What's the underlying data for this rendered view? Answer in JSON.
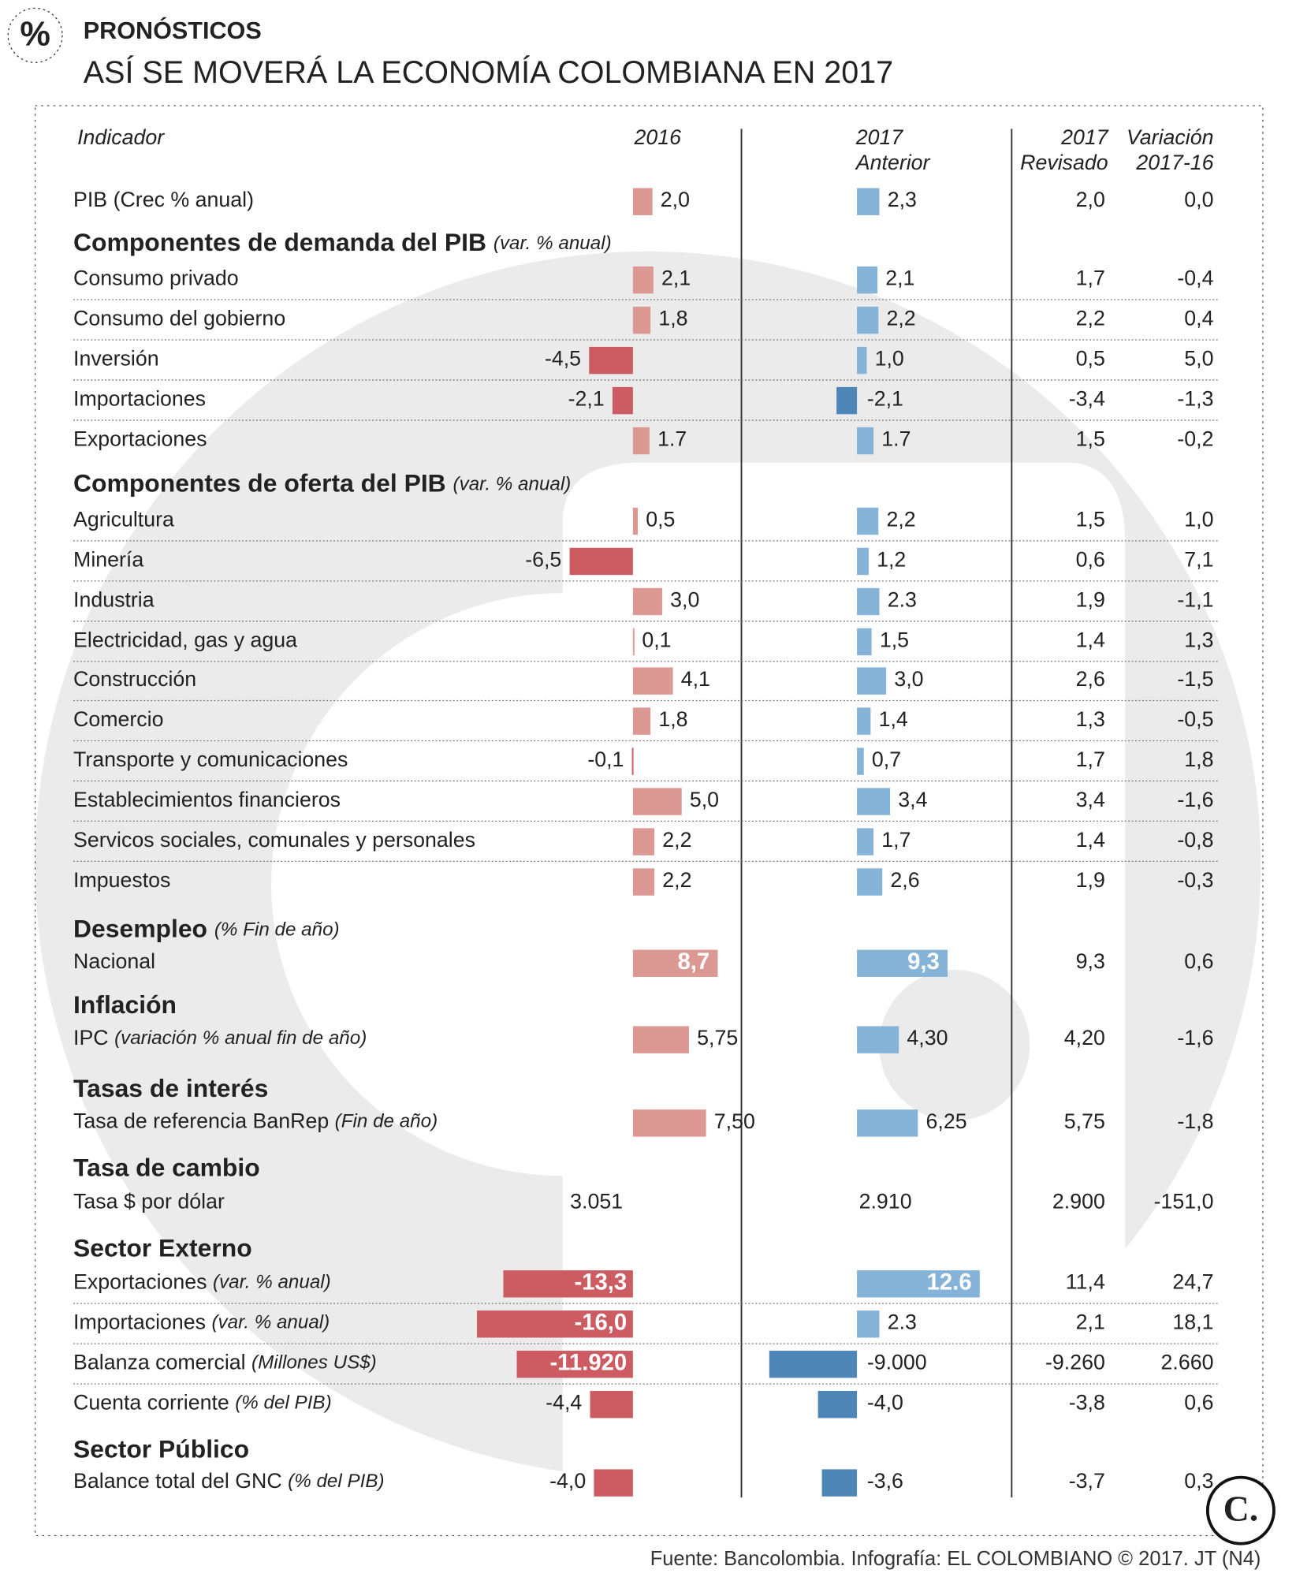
{
  "icon": "%",
  "header": {
    "kicker": "PRONÓSTICOS",
    "title": "ASÍ SE MOVERÁ LA ECONOMÍA COLOMBIANA EN 2017"
  },
  "columns": {
    "indicador": "Indicador",
    "c2016": "2016",
    "c2017a": [
      "2017",
      "Anterior"
    ],
    "c2017r": [
      "2017",
      "Revisado"
    ],
    "var": [
      "Variación",
      "2017-16"
    ]
  },
  "sections": [
    {
      "rows": [
        {
          "label": "PIB (Crec % anual)",
          "v16": 2.0,
          "l16": "2,0",
          "v17": 2.3,
          "l17": "2,3",
          "rev": "2,0",
          "var": "0,0"
        }
      ]
    },
    {
      "title": "Componentes de demanda del PIB",
      "note": "(var. % anual)",
      "rows": [
        {
          "label": "Consumo privado",
          "v16": 2.1,
          "l16": "2,1",
          "v17": 2.1,
          "l17": "2,1",
          "rev": "1,7",
          "var": "-0,4"
        },
        {
          "label": "Consumo del gobierno",
          "v16": 1.8,
          "l16": "1,8",
          "v17": 2.2,
          "l17": "2,2",
          "rev": "2,2",
          "var": "0,4"
        },
        {
          "label": "Inversión",
          "v16": -4.5,
          "l16": "-4,5",
          "v17": 1.0,
          "l17": "1,0",
          "rev": "0,5",
          "var": "5,0"
        },
        {
          "label": "Importaciones",
          "v16": -2.1,
          "l16": "-2,1",
          "v17": -2.1,
          "l17": "-2,1",
          "rev": "-3,4",
          "var": "-1,3"
        },
        {
          "label": "Exportaciones",
          "v16": 1.7,
          "v17": 1.7,
          "rev": "1,5",
          "var": "-0,2"
        }
      ]
    },
    {
      "title": "Componentes de oferta del PIB",
      "note": "(var. % anual)",
      "rows": [
        {
          "label": "Agricultura",
          "v16": 0.5,
          "l16": "0,5",
          "v17": 2.2,
          "l17": "2,2",
          "rev": "1,5",
          "var": "1,0"
        },
        {
          "label": "Minería",
          "v16": -6.5,
          "l16": "-6,5",
          "v17": 1.2,
          "l17": "1,2",
          "rev": "0,6",
          "var": "7,1"
        },
        {
          "label": "Industria",
          "v16": 3.0,
          "l16": "3,0",
          "v17": 2.3,
          "rev": "1,9",
          "var": "-1,1"
        },
        {
          "label": "Electricidad, gas y agua",
          "v16": 0.1,
          "l16": "0,1",
          "v17": 1.5,
          "l17": "1,5",
          "rev": "1,4",
          "var": "1,3"
        },
        {
          "label": "Construcción",
          "v16": 4.1,
          "l16": "4,1",
          "v17": 3.0,
          "l17": "3,0",
          "rev": "2,6",
          "var": "-1,5"
        },
        {
          "label": "Comercio",
          "v16": 1.8,
          "l16": "1,8",
          "v17": 1.4,
          "l17": "1,4",
          "rev": "1,3",
          "var": "-0,5"
        },
        {
          "label": "Transporte y comunicaciones",
          "v16": -0.1,
          "l16": "-0,1",
          "v17": 0.7,
          "l17": "0,7",
          "rev": "1,7",
          "var": "1,8"
        },
        {
          "label": "Establecimientos financieros",
          "v16": 5.0,
          "l16": "5,0",
          "v17": 3.4,
          "l17": "3,4",
          "rev": "3,4",
          "var": "-1,6"
        },
        {
          "label": "Servicos sociales, comunales y personales",
          "v16": 2.2,
          "l16": "2,2",
          "v17": 1.7,
          "l17": "1,7",
          "rev": "1,4",
          "var": "-0,8"
        },
        {
          "label": "Impuestos",
          "v16": 2.2,
          "l16": "2,2",
          "v17": 2.6,
          "l17": "2,6",
          "rev": "1,9",
          "var": "-0,3"
        }
      ]
    },
    {
      "title": "Desempleo",
      "note": "(% Fin de año)",
      "rows": [
        {
          "label": "Nacional",
          "v16": 8.7,
          "l16": "8,7",
          "v17": 9.3,
          "l17": "9,3",
          "rev": "9,3",
          "var": "0,6"
        }
      ]
    },
    {
      "title": "Inflación",
      "rows": [
        {
          "label": "IPC",
          "note": "(variación % anual fin de año)",
          "v16": 5.75,
          "l16": "5,75",
          "v17": 4.3,
          "l17": "4,30",
          "rev": "4,20",
          "var": "-1,6"
        }
      ]
    },
    {
      "title": "Tasas de interés",
      "rows": [
        {
          "label": "Tasa de referencia BanRep",
          "note": "(Fin de año)",
          "v16": 7.5,
          "l16": "7,50",
          "v17": 6.25,
          "l17": "6,25",
          "rev": "5,75",
          "var": "-1,8"
        }
      ]
    },
    {
      "title": "Tasa de cambio",
      "rows": [
        {
          "label": "Tasa $ por dólar",
          "l16": "3.051",
          "l17": "2.910",
          "rev": "2.900",
          "var": "-151,0"
        }
      ]
    },
    {
      "title": "Sector Externo",
      "rows": [
        {
          "label": "Exportaciones",
          "note": "(var. % anual)",
          "v16": -13.3,
          "l16": "-13,3",
          "v17": 12.6,
          "rev": "11,4",
          "var": "24,7"
        },
        {
          "label": "Importaciones",
          "note": "(var. % anual)",
          "v16": -16.0,
          "l16": "-16,0",
          "v17": 2.3,
          "rev": "2,1",
          "var": "18,1"
        },
        {
          "label": "Balanza comercial",
          "note": "(Millones US$)",
          "v16": -11920,
          "l16": "-11.920",
          "v17": -9000,
          "l17": "-9.000",
          "rev": "-9.260",
          "var": "2.660"
        },
        {
          "label": "Cuenta corriente",
          "note": "(% del PIB)",
          "v16": -4.4,
          "l16": "-4,4",
          "v17": -4.0,
          "l17": "-4,0",
          "rev": "-3,8",
          "var": "0,6"
        }
      ]
    },
    {
      "title": "Sector Público",
      "rows": [
        {
          "label": "Balance total del GNC",
          "note": "(% del PIB)",
          "v16": -4.0,
          "l16": "-4,0",
          "v17": -3.6,
          "l17": "-3,6",
          "rev": "-3,7",
          "var": "0,3"
        }
      ]
    }
  ],
  "source": "Fuente: Bancolombia. Infografía: EL COLOMBIANO © 2017. JT (N4)",
  "logo": "C."
}
